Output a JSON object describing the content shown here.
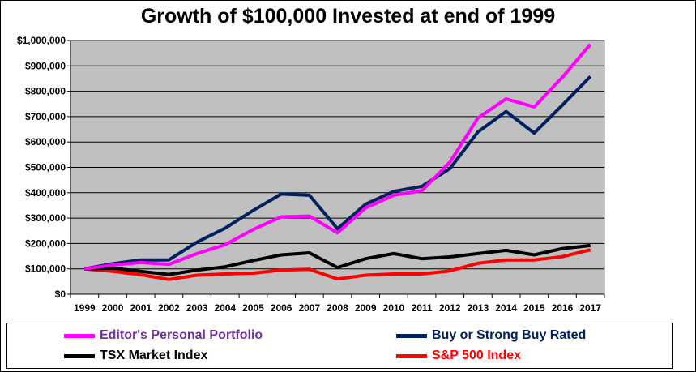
{
  "chart_data": {
    "type": "line",
    "title": "Growth of $100,000  Invested at end of 1999",
    "xlabel": "",
    "ylabel": "",
    "categories": [
      "1999",
      "2000",
      "2001",
      "2002",
      "2003",
      "2004",
      "2005",
      "2006",
      "2007",
      "2008",
      "2009",
      "2010",
      "2011",
      "2012",
      "2013",
      "2014",
      "2015",
      "2016",
      "2017"
    ],
    "ylim": [
      0,
      1000000
    ],
    "yticks": [
      "$0",
      "$100,000",
      "$200,000",
      "$300,000",
      "$400,000",
      "$500,000",
      "$600,000",
      "$700,000",
      "$800,000",
      "$900,000",
      "$1,000,000"
    ],
    "grid": true,
    "legend_position": "bottom",
    "plot_background": "#c0c0c0",
    "series": [
      {
        "name": "Editor's Personal Portfolio",
        "color": "#ff00ff",
        "legend_text_color": "#7030a0",
        "values": [
          100000,
          115000,
          125000,
          118000,
          160000,
          195000,
          255000,
          305000,
          308000,
          242000,
          340000,
          390000,
          408000,
          520000,
          695000,
          770000,
          738000,
          855000,
          985000
        ]
      },
      {
        "name": "Buy or Strong Buy Rated",
        "color": "#002060",
        "legend_text_color": "#002060",
        "values": [
          100000,
          120000,
          135000,
          135000,
          205000,
          260000,
          330000,
          395000,
          390000,
          258000,
          355000,
          405000,
          425000,
          495000,
          640000,
          720000,
          635000,
          745000,
          858000
        ]
      },
      {
        "name": "TSX Market Index",
        "color": "#000000",
        "legend_text_color": "#000000",
        "values": [
          100000,
          103000,
          90000,
          78000,
          95000,
          108000,
          133000,
          155000,
          163000,
          105000,
          140000,
          160000,
          140000,
          147000,
          160000,
          173000,
          155000,
          180000,
          192000
        ]
      },
      {
        "name": "S&P 500 Index",
        "color": "#ff0000",
        "legend_text_color": "#ff0000",
        "values": [
          100000,
          90000,
          77000,
          58000,
          75000,
          80000,
          83000,
          95000,
          98000,
          60000,
          75000,
          80000,
          80000,
          92000,
          122000,
          135000,
          135000,
          148000,
          175000
        ]
      }
    ]
  }
}
